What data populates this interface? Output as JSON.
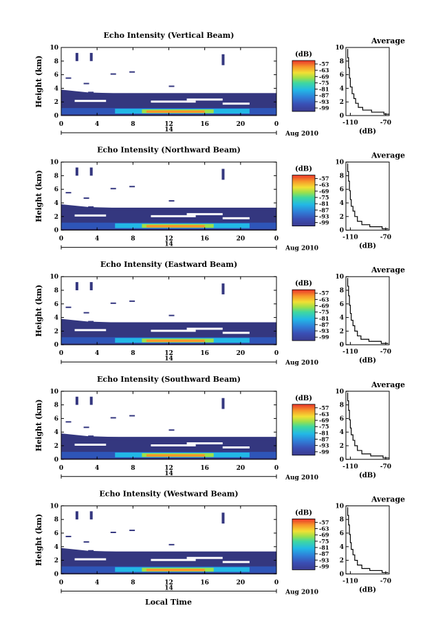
{
  "figure": {
    "x_axis_label": "Local Time",
    "date_label": "Aug 2010",
    "day_label": "14",
    "cb_unit": "(dB)",
    "avg_title": "Average",
    "avg_xlabel": "(dB)"
  },
  "chart_data": [
    {
      "type": "heatmap",
      "title": "Echo Intensity (Vertical Beam)",
      "ylabel": "Height (km)",
      "xlim": [
        0,
        24
      ],
      "ylim": [
        0,
        10
      ],
      "x_ticks": [
        "0",
        "4",
        "8",
        "12",
        "16",
        "20",
        "0"
      ],
      "y_ticks": [
        "0",
        "2",
        "4",
        "6",
        "8",
        "10"
      ],
      "colorbar_label": "(dB)",
      "colorbar_ticks": [
        "-57",
        "-63",
        "-69",
        "-75",
        "-81",
        "-87",
        "-93",
        "-99"
      ],
      "average": {
        "title": "Average",
        "xlabel": "(dB)",
        "x_ticks": [
          "-110",
          "-70"
        ],
        "xlim": [
          -115,
          -66
        ],
        "profile": [
          [
            -66,
            0.2
          ],
          [
            -72,
            0.5
          ],
          [
            -86,
            0.8
          ],
          [
            -96,
            1.2
          ],
          [
            -101,
            1.8
          ],
          [
            -104,
            2.5
          ],
          [
            -106,
            3.2
          ],
          [
            -108,
            4.2
          ],
          [
            -110,
            5.5
          ],
          [
            -111,
            7.0
          ],
          [
            -112,
            8.5
          ],
          [
            -113,
            9.8
          ]
        ]
      }
    },
    {
      "type": "heatmap",
      "title": "Echo Intensity (Northward Beam)",
      "ylabel": "Height (km)",
      "xlim": [
        0,
        24
      ],
      "ylim": [
        0,
        10
      ],
      "x_ticks": [
        "0",
        "4",
        "8",
        "12",
        "16",
        "20",
        "0"
      ],
      "y_ticks": [
        "0",
        "2",
        "4",
        "6",
        "8",
        "10"
      ],
      "colorbar_label": "(dB)",
      "colorbar_ticks": [
        "-57",
        "-63",
        "-69",
        "-75",
        "-81",
        "-87",
        "-93",
        "-99"
      ],
      "average": {
        "title": "Average",
        "xlabel": "(dB)",
        "x_ticks": [
          "-110",
          "-70"
        ],
        "xlim": [
          -115,
          -66
        ],
        "profile": [
          [
            -67,
            0.2
          ],
          [
            -74,
            0.5
          ],
          [
            -88,
            0.8
          ],
          [
            -97,
            1.3
          ],
          [
            -102,
            2.0
          ],
          [
            -105,
            2.8
          ],
          [
            -107,
            3.5
          ],
          [
            -109,
            4.5
          ],
          [
            -110,
            5.8
          ],
          [
            -111,
            7.2
          ],
          [
            -112,
            8.6
          ],
          [
            -113,
            9.8
          ]
        ]
      }
    },
    {
      "type": "heatmap",
      "title": "Echo Intensity (Eastward Beam)",
      "ylabel": "Height (km)",
      "xlim": [
        0,
        24
      ],
      "ylim": [
        0,
        10
      ],
      "x_ticks": [
        "0",
        "4",
        "8",
        "12",
        "16",
        "20",
        "0"
      ],
      "y_ticks": [
        "0",
        "2",
        "4",
        "6",
        "8",
        "10"
      ],
      "colorbar_label": "(dB)",
      "colorbar_ticks": [
        "-57",
        "-63",
        "-69",
        "-75",
        "-81",
        "-87",
        "-93",
        "-99"
      ],
      "average": {
        "title": "Average",
        "xlabel": "(dB)",
        "x_ticks": [
          "-110",
          "-70"
        ],
        "xlim": [
          -115,
          -66
        ],
        "profile": [
          [
            -67,
            0.2
          ],
          [
            -75,
            0.5
          ],
          [
            -89,
            0.8
          ],
          [
            -98,
            1.3
          ],
          [
            -102,
            2.0
          ],
          [
            -105,
            2.8
          ],
          [
            -107,
            3.6
          ],
          [
            -109,
            4.6
          ],
          [
            -110,
            5.8
          ],
          [
            -111,
            7.2
          ],
          [
            -112,
            8.6
          ],
          [
            -113,
            9.8
          ]
        ]
      }
    },
    {
      "type": "heatmap",
      "title": "Echo Intensity (Southward Beam)",
      "ylabel": "Height (km)",
      "xlim": [
        0,
        24
      ],
      "ylim": [
        0,
        10
      ],
      "x_ticks": [
        "0",
        "4",
        "8",
        "12",
        "16",
        "20",
        "0"
      ],
      "y_ticks": [
        "0",
        "2",
        "4",
        "6",
        "8",
        "10"
      ],
      "colorbar_label": "(dB)",
      "colorbar_ticks": [
        "-57",
        "-63",
        "-69",
        "-75",
        "-81",
        "-87",
        "-93",
        "-99"
      ],
      "average": {
        "title": "Average",
        "xlabel": "(dB)",
        "x_ticks": [
          "-110",
          "-70"
        ],
        "xlim": [
          -115,
          -66
        ],
        "profile": [
          [
            -66,
            0.2
          ],
          [
            -73,
            0.5
          ],
          [
            -87,
            0.8
          ],
          [
            -97,
            1.3
          ],
          [
            -102,
            2.0
          ],
          [
            -105,
            2.8
          ],
          [
            -107,
            3.6
          ],
          [
            -109,
            4.6
          ],
          [
            -110,
            5.8
          ],
          [
            -111,
            7.2
          ],
          [
            -112,
            8.6
          ],
          [
            -113,
            9.8
          ]
        ]
      }
    },
    {
      "type": "heatmap",
      "title": "Echo Intensity (Westward Beam)",
      "ylabel": "Height (km)",
      "xlim": [
        0,
        24
      ],
      "ylim": [
        0,
        10
      ],
      "x_ticks": [
        "0",
        "4",
        "8",
        "12",
        "16",
        "20",
        "0"
      ],
      "y_ticks": [
        "0",
        "2",
        "4",
        "6",
        "8",
        "10"
      ],
      "colorbar_label": "(dB)",
      "colorbar_ticks": [
        "-57",
        "-63",
        "-69",
        "-75",
        "-81",
        "-87",
        "-93",
        "-99"
      ],
      "average": {
        "title": "Average",
        "xlabel": "(dB)",
        "x_ticks": [
          "-110",
          "-70"
        ],
        "xlim": [
          -115,
          -66
        ],
        "profile": [
          [
            -67,
            0.2
          ],
          [
            -74,
            0.5
          ],
          [
            -88,
            0.8
          ],
          [
            -97,
            1.3
          ],
          [
            -102,
            2.0
          ],
          [
            -105,
            2.8
          ],
          [
            -107,
            3.6
          ],
          [
            -109,
            4.6
          ],
          [
            -110,
            5.8
          ],
          [
            -111,
            7.2
          ],
          [
            -112,
            8.6
          ],
          [
            -113,
            9.8
          ]
        ]
      }
    }
  ]
}
